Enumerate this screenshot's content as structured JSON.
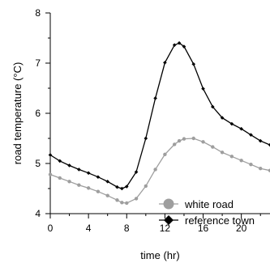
{
  "chart_data": {
    "type": "line",
    "title": "",
    "xlabel": "time (hr)",
    "ylabel": "road temperature (°C)",
    "xlim": [
      0,
      23
    ],
    "ylim": [
      4,
      8
    ],
    "x_ticks": [
      0,
      4,
      8,
      12,
      16,
      20
    ],
    "y_ticks": [
      4,
      5,
      6,
      7,
      8
    ],
    "grid": false,
    "legend_position": "bottom-right",
    "x": [
      0,
      1,
      2,
      3,
      4,
      5,
      6,
      7,
      7.5,
      8,
      9,
      10,
      11,
      12,
      13,
      13.5,
      14,
      15,
      16,
      17,
      18,
      19,
      20,
      21,
      22,
      23
    ],
    "series": [
      {
        "name": "white road",
        "color": "#9e9e9e",
        "marker": "circle",
        "values": [
          4.78,
          4.71,
          4.64,
          4.57,
          4.51,
          4.44,
          4.36,
          4.27,
          4.22,
          4.21,
          4.3,
          4.55,
          4.88,
          5.18,
          5.38,
          5.45,
          5.49,
          5.5,
          5.43,
          5.33,
          5.22,
          5.14,
          5.06,
          4.98,
          4.9,
          4.86
        ]
      },
      {
        "name": "reference town",
        "color": "#000000",
        "marker": "diamond",
        "values": [
          5.17,
          5.05,
          4.96,
          4.88,
          4.81,
          4.73,
          4.64,
          4.53,
          4.5,
          4.54,
          4.83,
          5.5,
          6.3,
          7.01,
          7.36,
          7.4,
          7.33,
          6.98,
          6.49,
          6.13,
          5.91,
          5.79,
          5.69,
          5.57,
          5.45,
          5.37
        ]
      }
    ]
  }
}
